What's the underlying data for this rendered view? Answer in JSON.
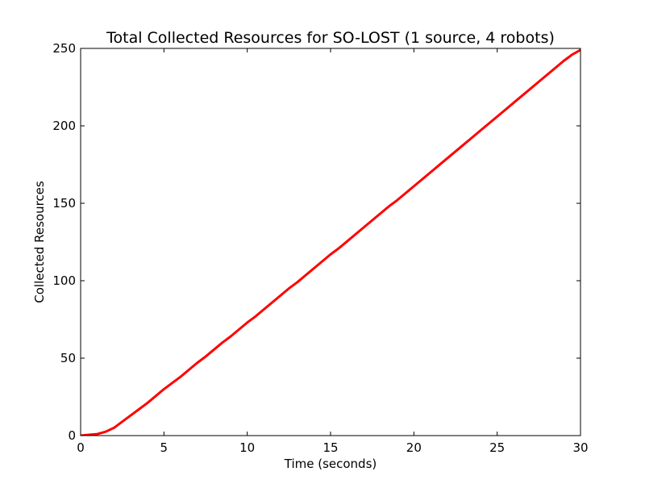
{
  "chart_data": {
    "type": "line",
    "title": "Total Collected Resources for SO-LOST (1 source, 4 robots)",
    "xlabel": "Time (seconds)",
    "ylabel": "Collected Resources",
    "xlim": [
      0,
      30
    ],
    "ylim": [
      0,
      250
    ],
    "xticks": [
      0,
      5,
      10,
      15,
      20,
      25,
      30
    ],
    "yticks": [
      0,
      50,
      100,
      150,
      200,
      250
    ],
    "grid": false,
    "series": [
      {
        "color": "#ff0000",
        "x": [
          0,
          0.5,
          1,
          1.5,
          2,
          2.5,
          3,
          3.5,
          4,
          4.5,
          5,
          5.5,
          6,
          6.5,
          7,
          7.5,
          8,
          8.5,
          9,
          9.5,
          10,
          10.5,
          11,
          11.5,
          12,
          12.5,
          13,
          13.5,
          14,
          14.5,
          15,
          15.5,
          16,
          16.5,
          17,
          17.5,
          18,
          18.5,
          19,
          19.5,
          20,
          20.5,
          21,
          21.5,
          22,
          22.5,
          23,
          23.5,
          24,
          24.5,
          25,
          25.5,
          26,
          26.5,
          27,
          27.5,
          28,
          28.5,
          29,
          29.5,
          30
        ],
        "y": [
          0,
          0.5,
          1,
          2.5,
          5,
          9,
          13,
          17,
          21,
          25.5,
          30,
          34,
          38,
          42.5,
          47,
          51,
          55.5,
          60,
          64,
          68.5,
          73,
          77,
          81.5,
          86,
          90.5,
          95,
          99,
          103.5,
          108,
          112.5,
          117,
          121,
          125.5,
          130,
          134.5,
          139,
          143.5,
          148,
          152,
          156.5,
          161,
          165.5,
          170,
          174.5,
          179,
          183.5,
          188,
          192.5,
          197,
          201.5,
          206,
          210.5,
          215,
          219.5,
          224,
          228.5,
          233,
          237.5,
          242,
          246,
          249
        ]
      }
    ]
  }
}
